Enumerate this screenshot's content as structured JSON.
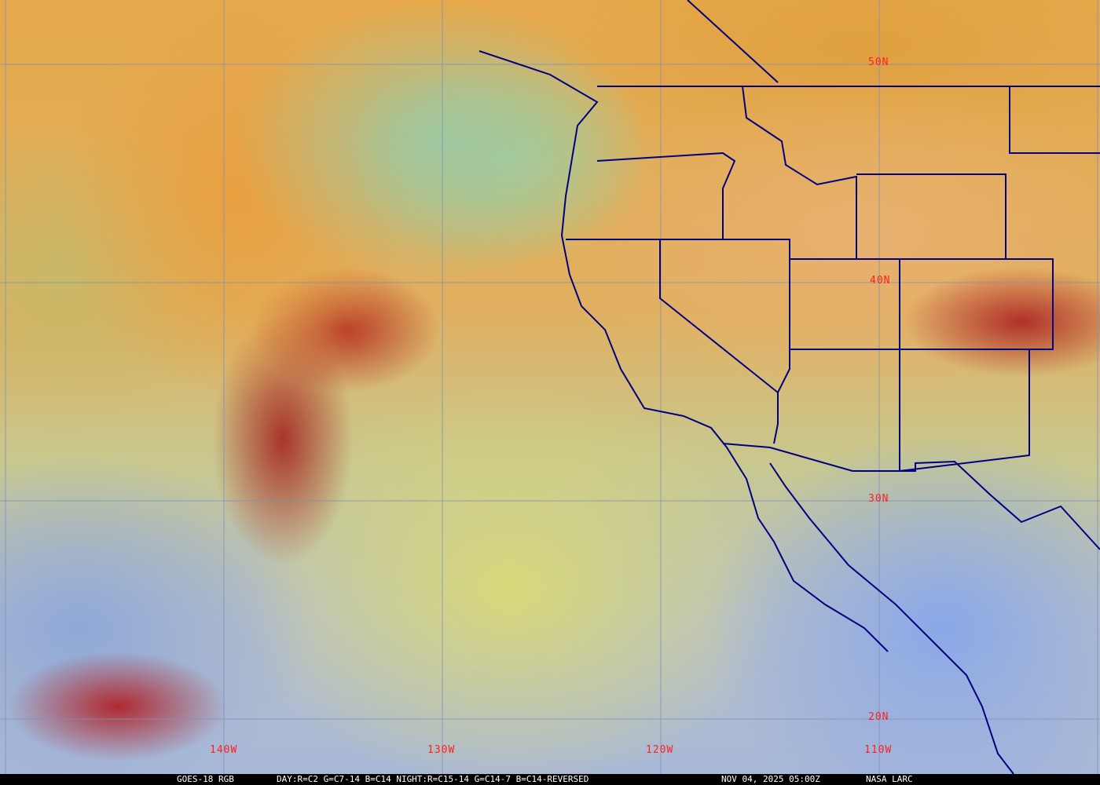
{
  "map": {
    "lat_labels": [
      "50N",
      "40N",
      "30N",
      "20N"
    ],
    "lon_labels": [
      "140W",
      "130W",
      "120W",
      "110W"
    ],
    "label_color": "#ff2020",
    "grid_color": "#8090b8",
    "border_color": "#000080"
  },
  "footer": {
    "product": "GOES-18 RGB",
    "recipe": "DAY:R=C2 G=C7-14 B=C14 NIGHT:R=C15-14 G=C14-7 B=C14-REVERSED",
    "timestamp": "NOV 04, 2025 05:00Z",
    "credit": "NASA LARC"
  }
}
